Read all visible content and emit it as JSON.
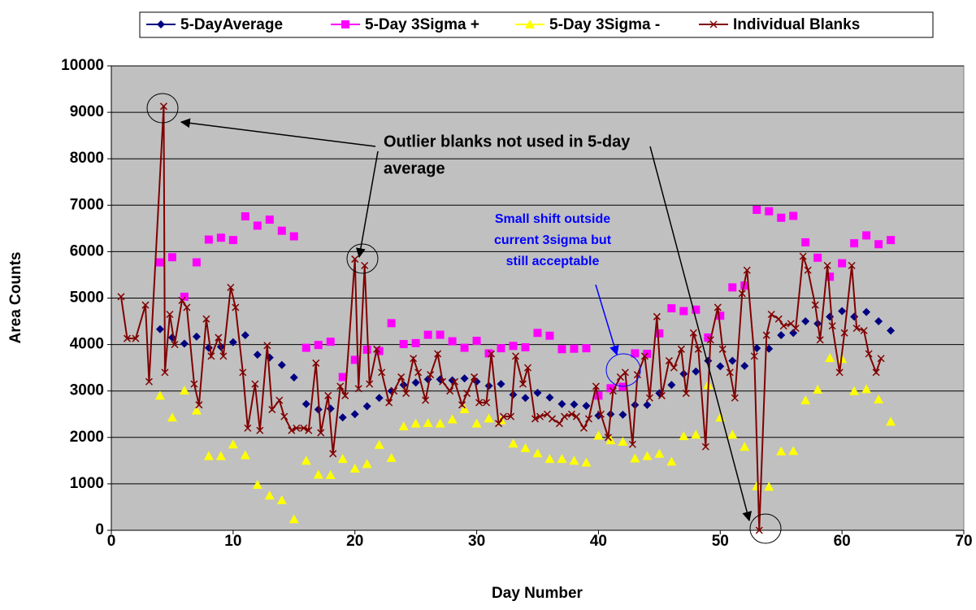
{
  "chart_data": {
    "type": "scatter",
    "xlabel": "Day Number",
    "ylabel": "Area Counts",
    "xlim": [
      0,
      70
    ],
    "xticks": [
      0,
      10,
      20,
      30,
      40,
      50,
      60,
      70
    ],
    "ylim": [
      0,
      10000
    ],
    "yticks": [
      0,
      1000,
      2000,
      3000,
      4000,
      5000,
      6000,
      7000,
      8000,
      9000,
      10000
    ],
    "grid": true,
    "legend": "top",
    "background": "#c0c0c0",
    "annotations": [
      {
        "lines": [
          "Outlier blanks not used in 5-day",
          "average"
        ],
        "color": "#000000"
      },
      {
        "lines": [
          "Small shift outside",
          "current 3sigma but",
          "still acceptable"
        ],
        "color": "#0000ff"
      }
    ],
    "series": [
      {
        "name": "5-DayAverage",
        "color": "#000080",
        "marker": "diamond",
        "line": false,
        "x": [
          4,
          5,
          6,
          7,
          8,
          9,
          10,
          11,
          12,
          13,
          14,
          15,
          16,
          17,
          18,
          19,
          20,
          21,
          22,
          23,
          24,
          25,
          26,
          27,
          28,
          29,
          30,
          31,
          32,
          33,
          34,
          35,
          36,
          37,
          38,
          39,
          40,
          41,
          42,
          43,
          44,
          45,
          46,
          47,
          48,
          49,
          50,
          51,
          52,
          53,
          54,
          55,
          56,
          57,
          58,
          59,
          60,
          61,
          62,
          63,
          64
        ],
        "values": [
          4330,
          4150,
          4020,
          4170,
          3930,
          3950,
          4050,
          4200,
          3780,
          3720,
          3560,
          3290,
          2720,
          2600,
          2620,
          2430,
          2500,
          2670,
          2850,
          3000,
          3130,
          3180,
          3250,
          3250,
          3230,
          3270,
          3200,
          3110,
          3150,
          2920,
          2850,
          2960,
          2860,
          2720,
          2710,
          2680,
          2470,
          2500,
          2490,
          2700,
          2700,
          2950,
          3130,
          3370,
          3420,
          3650,
          3530,
          3650,
          3540,
          3920,
          3910,
          4200,
          4250,
          4500,
          4450,
          4600,
          4720,
          4600,
          4700,
          4500,
          4300
        ]
      },
      {
        "name": "5-Day 3Sigma +",
        "color": "#ff00ff",
        "marker": "square",
        "line": false,
        "x": [
          4,
          5,
          6,
          7,
          8,
          9,
          10,
          11,
          12,
          13,
          14,
          15,
          16,
          17,
          18,
          19,
          20,
          21,
          22,
          23,
          24,
          25,
          26,
          27,
          28,
          29,
          30,
          31,
          32,
          33,
          34,
          35,
          36,
          37,
          38,
          39,
          40,
          41,
          42,
          43,
          44,
          45,
          46,
          47,
          48,
          49,
          50,
          51,
          52,
          53,
          54,
          55,
          56,
          57,
          58,
          59,
          60,
          61,
          62,
          63,
          64
        ],
        "values": [
          5770,
          5880,
          5030,
          5770,
          6260,
          6300,
          6250,
          6760,
          6560,
          6690,
          6450,
          6330,
          3930,
          3990,
          4060,
          3300,
          3670,
          3890,
          3860,
          4460,
          4010,
          4030,
          4210,
          4210,
          4070,
          3930,
          4080,
          3810,
          3920,
          3970,
          3940,
          4250,
          4190,
          3900,
          3910,
          3920,
          2900,
          3060,
          3090,
          3810,
          3800,
          4240,
          4780,
          4720,
          4750,
          4150,
          4620,
          5230,
          5270,
          6900,
          6870,
          6730,
          6770,
          6200,
          5870,
          5460,
          5750,
          6180,
          6350,
          6160,
          6250
        ]
      },
      {
        "name": "5-Day 3Sigma -",
        "color": "#ffff00",
        "marker": "triangle",
        "line": false,
        "x": [
          4,
          5,
          6,
          7,
          8,
          9,
          10,
          11,
          12,
          13,
          14,
          15,
          16,
          17,
          18,
          19,
          20,
          21,
          22,
          23,
          24,
          25,
          26,
          27,
          28,
          29,
          30,
          31,
          32,
          33,
          34,
          35,
          36,
          37,
          38,
          39,
          40,
          41,
          42,
          43,
          44,
          45,
          46,
          47,
          48,
          49,
          50,
          51,
          52,
          53,
          54,
          55,
          56,
          57,
          58,
          59,
          60,
          61,
          62,
          63,
          64
        ],
        "values": [
          2900,
          2430,
          3010,
          2580,
          1600,
          1600,
          1850,
          1620,
          980,
          750,
          650,
          240,
          1500,
          1200,
          1190,
          1540,
          1330,
          1430,
          1840,
          1560,
          2240,
          2300,
          2310,
          2300,
          2390,
          2610,
          2300,
          2410,
          2370,
          1870,
          1770,
          1660,
          1540,
          1540,
          1500,
          1460,
          2040,
          1940,
          1910,
          1550,
          1600,
          1650,
          1480,
          2030,
          2060,
          3130,
          2430,
          2060,
          1800,
          950,
          940,
          1700,
          1710,
          2800,
          3030,
          3710,
          3690,
          3000,
          3040,
          2820,
          2340
        ]
      },
      {
        "name": "Individual Blanks",
        "color": "#800000",
        "marker": "x",
        "line": true,
        "x": [
          0.8,
          1.3,
          2,
          2.8,
          3.1,
          4.3,
          4.4,
          4.8,
          5.2,
          5.8,
          6.2,
          6.8,
          7.2,
          7.8,
          8.2,
          8.8,
          9.2,
          9.8,
          10.2,
          10.8,
          11.2,
          11.8,
          12.2,
          12.8,
          13.2,
          13.8,
          14.2,
          14.8,
          15.2,
          15.8,
          16.2,
          16.8,
          17.2,
          17.8,
          18.2,
          18.8,
          19.2,
          20,
          20.3,
          20.8,
          21.2,
          21.8,
          22.2,
          22.8,
          23.2,
          23.8,
          24.2,
          24.8,
          25.2,
          25.8,
          26.2,
          26.8,
          27.2,
          27.8,
          28.2,
          28.8,
          29.2,
          29.8,
          30.2,
          30.8,
          31.2,
          31.8,
          32.2,
          32.8,
          33.2,
          33.8,
          34.2,
          34.8,
          35.2,
          35.8,
          36.2,
          36.8,
          37.2,
          37.8,
          38.2,
          38.8,
          39.2,
          39.8,
          40.2,
          40.8,
          41.2,
          41.8,
          42.2,
          42.8,
          43.2,
          43.8,
          44.2,
          44.8,
          45.2,
          45.8,
          46.2,
          46.8,
          47.2,
          47.8,
          48.2,
          48.8,
          49.2,
          49.8,
          50.2,
          50.8,
          51.2,
          51.8,
          52.2,
          52.8,
          53.2,
          53.8,
          54.2,
          54.8,
          55.2,
          55.8,
          56.2,
          56.8,
          57.2,
          57.8,
          58.2,
          58.8,
          59.2,
          59.8,
          60.2,
          60.8,
          61.2,
          61.8,
          62.2,
          62.8,
          63.2
        ],
        "values": [
          5030,
          4130,
          4130,
          4850,
          3200,
          9130,
          3400,
          4650,
          4000,
          4950,
          4800,
          3150,
          2700,
          4550,
          3750,
          4150,
          3750,
          5230,
          4800,
          3400,
          2200,
          3150,
          2150,
          3980,
          2600,
          2800,
          2450,
          2150,
          2200,
          2200,
          2150,
          3600,
          2100,
          2900,
          1650,
          3100,
          2900,
          5840,
          3050,
          5700,
          3150,
          3900,
          3400,
          2750,
          3000,
          3300,
          2950,
          3700,
          3400,
          2800,
          3350,
          3800,
          3200,
          3000,
          3200,
          2700,
          2950,
          3300,
          2750,
          2750,
          3800,
          2300,
          2450,
          2450,
          3750,
          3150,
          3500,
          2400,
          2450,
          2500,
          2400,
          2300,
          2450,
          2500,
          2450,
          2200,
          2400,
          3100,
          2500,
          2000,
          3000,
          3300,
          3400,
          1850,
          3350,
          3750,
          2850,
          4600,
          2900,
          3650,
          3500,
          3900,
          2950,
          4250,
          3900,
          1800,
          4100,
          4800,
          3900,
          3400,
          2850,
          5100,
          5600,
          3750,
          0,
          4200,
          4650,
          4550,
          4400,
          4450,
          4350,
          5900,
          5600,
          4850,
          4100,
          5700,
          4400,
          3400,
          4250,
          5700,
          4350,
          4300,
          3800,
          3400,
          3700
        ]
      }
    ]
  }
}
